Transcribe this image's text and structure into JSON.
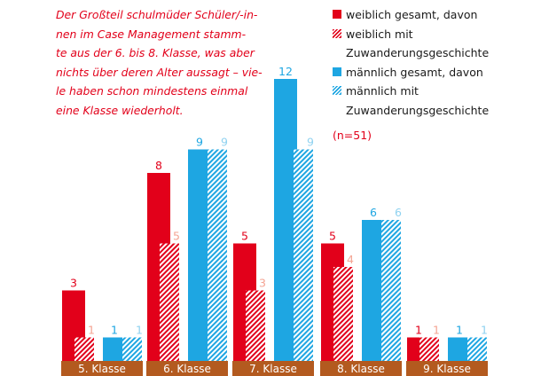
{
  "annotation_lines": [
    "Der Großteil schulmüder Schüler/-in-",
    "nen im Case Management stamm-",
    "te aus der 6. bis 8. Klasse, was aber",
    "nichts über deren Alter aussagt – vie-",
    "le haben schon mindestens einmal",
    "eine Klasse wiederholt."
  ],
  "sample_note": "(n=51)",
  "colors": {
    "female": "#e2001a",
    "female_migration": "#f4a493",
    "male": "#1ea6e2",
    "male_migration": "#8fd2f0",
    "axis_band": "#b35a1f"
  },
  "chart_data": {
    "type": "bar",
    "categories": [
      "5. Klasse",
      "6. Klasse",
      "7. Klasse",
      "8. Klasse",
      "9. Klasse"
    ],
    "series": [
      {
        "name": "weiblich gesamt, davon",
        "values": [
          3,
          8,
          5,
          5,
          1
        ]
      },
      {
        "name": "weiblich mit Zuwanderungsgeschichte",
        "values": [
          1,
          5,
          3,
          4,
          1
        ]
      },
      {
        "name": "männlich gesamt, davon",
        "values": [
          1,
          9,
          12,
          6,
          1
        ]
      },
      {
        "name": "männlich mit Zuwanderungsgeschichte",
        "values": [
          1,
          9,
          9,
          6,
          1
        ]
      }
    ],
    "ylim": [
      0,
      12
    ],
    "legend_position": "top-right",
    "grid": false
  }
}
